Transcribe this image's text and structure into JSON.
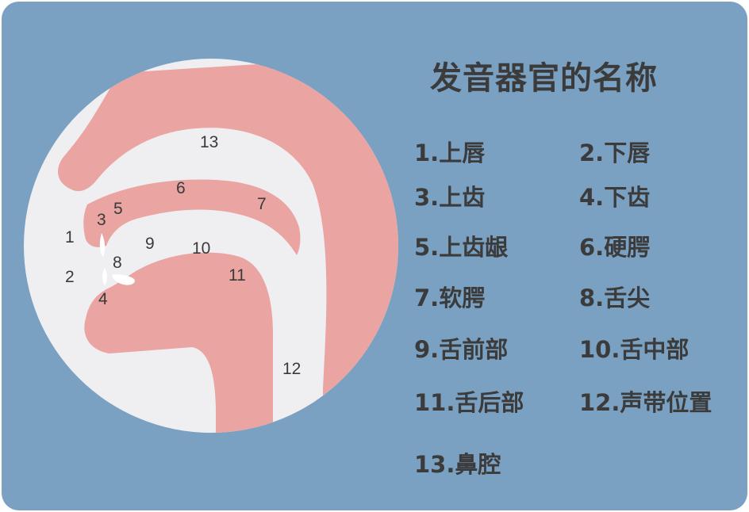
{
  "colors": {
    "card_background": "#7aa0c2",
    "circle_fill": "#efeff1",
    "organ_fill": "#eaa4a2",
    "text": "#3b3b3b"
  },
  "title": "发音器官的名称",
  "diagram_labels": {
    "upper_lip": "1",
    "lower_lip": "2",
    "upper_teeth": "3",
    "lower_teeth": "4",
    "alveolar_ridge": "5",
    "hard_palate": "6",
    "soft_palate": "7",
    "tongue_tip": "8",
    "tongue_front": "9",
    "tongue_middle": "10",
    "tongue_back": "11",
    "vocal_cords": "12",
    "nasal_cavity": "13"
  },
  "legend": [
    "1.上唇",
    "2.下唇",
    "3.上齿",
    "4.下齿",
    "5.上齿龈",
    "6.硬腭",
    "7.软腭",
    "8.舌尖",
    "9.舌前部",
    "10.舌中部",
    "11.舌后部",
    "12.声带位置",
    "13.鼻腔"
  ]
}
